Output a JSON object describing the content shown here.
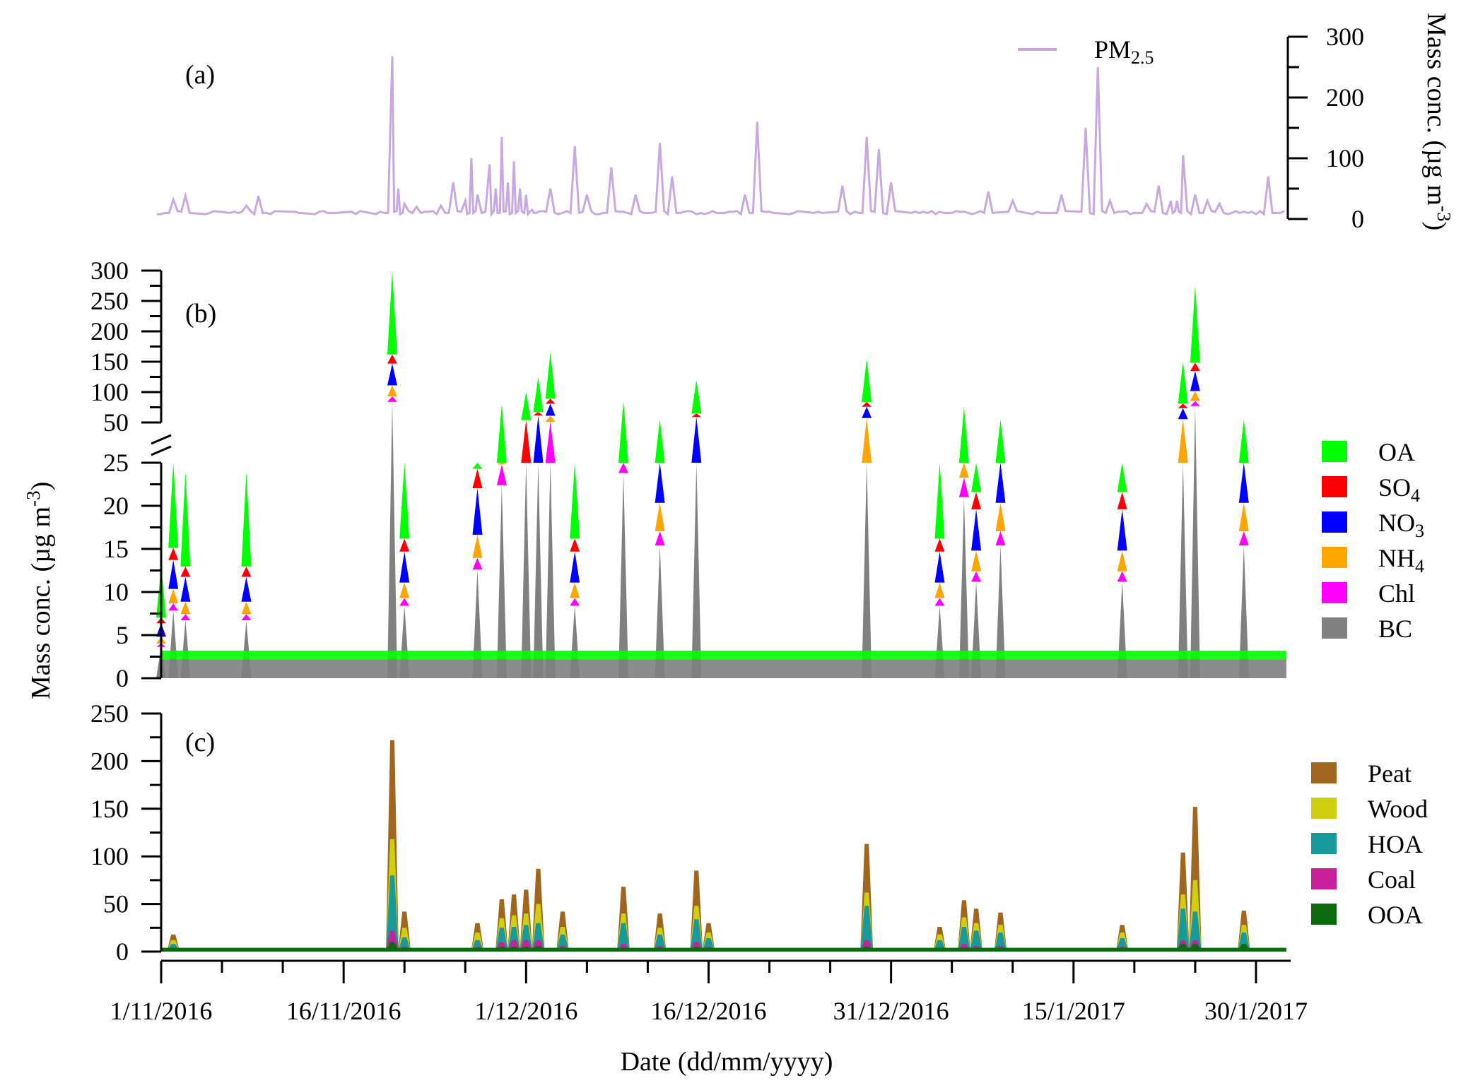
{
  "chart_data": [
    {
      "panel": "(a)",
      "type": "line",
      "ylabel": "Mass conc. (µg m",
      "ylabel_sup": "-3",
      "ylabel_close": ")",
      "y_axis_side": "right",
      "ylim": [
        0,
        300
      ],
      "yticks": [
        "0",
        "100",
        "200",
        "300"
      ],
      "legend": {
        "position": "top-right",
        "label": "PM",
        "label_sub": "2.5"
      },
      "colors": {
        "PM2.5": "#c8a8e0"
      },
      "series": [
        {
          "name": "PM2.5",
          "x": [
            "2016-11-01",
            "2016-11-02",
            "2016-11-03",
            "2016-11-05",
            "2016-11-07",
            "2016-11-08",
            "2016-11-09",
            "2016-11-10",
            "2016-11-12",
            "2016-11-14",
            "2016-11-15",
            "2016-11-17",
            "2016-11-19",
            "2016-11-20",
            "2016-11-20T12",
            "2016-11-21",
            "2016-11-22",
            "2016-11-23",
            "2016-11-24",
            "2016-11-25",
            "2016-11-26",
            "2016-11-26T12",
            "2016-11-27",
            "2016-11-28",
            "2016-11-28T12",
            "2016-11-29",
            "2016-11-29T12",
            "2016-11-30",
            "2016-11-30T12",
            "2016-12-01",
            "2016-12-01T12",
            "2016-12-02",
            "2016-12-03",
            "2016-12-04",
            "2016-12-05",
            "2016-12-06",
            "2016-12-07",
            "2016-12-08",
            "2016-12-09",
            "2016-12-10",
            "2016-12-11",
            "2016-12-12",
            "2016-12-13",
            "2016-12-14",
            "2016-12-15",
            "2016-12-16",
            "2016-12-17",
            "2016-12-18",
            "2016-12-19",
            "2016-12-20",
            "2016-12-21",
            "2016-12-23",
            "2016-12-25",
            "2016-12-27",
            "2016-12-28",
            "2016-12-29",
            "2016-12-30",
            "2016-12-31",
            "2017-01-02",
            "2017-01-03",
            "2017-01-04",
            "2017-01-05",
            "2017-01-06",
            "2017-01-07",
            "2017-01-08",
            "2017-01-10",
            "2017-01-12",
            "2017-01-14",
            "2017-01-16",
            "2017-01-17",
            "2017-01-18",
            "2017-01-19",
            "2017-01-20",
            "2017-01-21",
            "2017-01-22",
            "2017-01-23",
            "2017-01-23T12",
            "2017-01-24",
            "2017-01-25",
            "2017-01-26",
            "2017-01-27",
            "2017-01-28",
            "2017-01-29",
            "2017-01-30",
            "2017-01-31",
            "2017-02-01"
          ],
          "values": [
            8,
            32,
            38,
            10,
            12,
            22,
            38,
            8,
            12,
            12,
            10,
            8,
            12,
            268,
            50,
            25,
            20,
            12,
            22,
            60,
            30,
            100,
            40,
            90,
            50,
            135,
            60,
            95,
            50,
            40,
            15,
            12,
            50,
            10,
            120,
            40,
            8,
            85,
            12,
            40,
            10,
            125,
            70,
            12,
            8,
            10,
            10,
            12,
            40,
            160,
            12,
            10,
            12,
            55,
            12,
            135,
            115,
            60,
            12,
            10,
            12,
            10,
            12,
            10,
            45,
            30,
            12,
            40,
            150,
            250,
            30,
            12,
            10,
            25,
            55,
            30,
            30,
            105,
            40,
            30,
            25,
            10,
            12,
            8,
            70,
            10
          ]
        }
      ]
    },
    {
      "panel": "(b)",
      "type": "area",
      "stacked": true,
      "ylabel": "Mass conc. (µg m",
      "ylabel_sup": "-3",
      "ylabel_close": ")",
      "y_axis_break": [
        25,
        50
      ],
      "ylim_lower": [
        0,
        25
      ],
      "ylim_upper": [
        50,
        300
      ],
      "yticks_lower": [
        "0",
        "5",
        "10",
        "15",
        "20",
        "25"
      ],
      "yticks_upper": [
        "50",
        "100",
        "150",
        "200",
        "250",
        "300"
      ],
      "legend": {
        "position": "right",
        "entries": [
          {
            "label": "OA",
            "sub": ""
          },
          {
            "label": "SO",
            "sub": "4"
          },
          {
            "label": "NO",
            "sub": "3"
          },
          {
            "label": "NH",
            "sub": "4"
          },
          {
            "label": "Chl",
            "sub": ""
          },
          {
            "label": "BC",
            "sub": ""
          }
        ]
      },
      "colors": {
        "OA": "#00ff00",
        "SO4": "#ff0000",
        "NO3": "#0000ff",
        "NH4": "#ffa500",
        "Chl": "#ff00ff",
        "BC": "#808080"
      },
      "events_total": [
        {
          "x": "2016-11-01",
          "total": 13
        },
        {
          "x": "2016-11-02",
          "total": 28
        },
        {
          "x": "2016-11-03",
          "total": 24
        },
        {
          "x": "2016-11-08",
          "total": 24
        },
        {
          "x": "2016-11-20",
          "total": 300
        },
        {
          "x": "2016-11-21",
          "total": 30
        },
        {
          "x": "2016-11-27",
          "total": 45
        },
        {
          "x": "2016-11-29",
          "total": 80
        },
        {
          "x": "2016-12-01",
          "total": 100
        },
        {
          "x": "2016-12-02",
          "total": 125
        },
        {
          "x": "2016-12-03",
          "total": 165
        },
        {
          "x": "2016-12-05",
          "total": 30
        },
        {
          "x": "2016-12-09",
          "total": 85
        },
        {
          "x": "2016-12-12",
          "total": 55
        },
        {
          "x": "2016-12-15",
          "total": 120
        },
        {
          "x": "2016-12-29",
          "total": 155
        },
        {
          "x": "2017-01-04",
          "total": 30
        },
        {
          "x": "2017-01-06",
          "total": 75
        },
        {
          "x": "2017-01-07",
          "total": 40
        },
        {
          "x": "2017-01-09",
          "total": 55
        },
        {
          "x": "2017-01-19",
          "total": 40
        },
        {
          "x": "2017-01-24",
          "total": 150
        },
        {
          "x": "2017-01-25",
          "total": 275
        },
        {
          "x": "2017-01-29",
          "total": 55
        }
      ]
    },
    {
      "panel": "(c)",
      "type": "area",
      "stacked": true,
      "ylim": [
        0,
        250
      ],
      "yticks": [
        "0",
        "50",
        "100",
        "150",
        "200",
        "250"
      ],
      "legend": {
        "position": "right",
        "entries": [
          "Peat",
          "Wood",
          "HOA",
          "Coal",
          "OOA"
        ]
      },
      "colors": {
        "Peat": "#a0661e",
        "Wood": "#cfcf10",
        "HOA": "#189a9a",
        "Coal": "#c8209c",
        "OOA": "#0e6a10"
      },
      "xlabel": "Date (dd/mm/yyyy)",
      "xticks": [
        "1/11/2016",
        "16/11/2016",
        "1/12/2016",
        "16/12/2016",
        "31/12/2016",
        "15/1/2017",
        "30/1/2017"
      ],
      "peaks": [
        {
          "x": "2016-11-02",
          "Peat": 18,
          "Wood": 12,
          "HOA": 8,
          "Coal": 4,
          "OOA": 3
        },
        {
          "x": "2016-11-20",
          "Peat": 222,
          "Wood": 118,
          "HOA": 80,
          "Coal": 22,
          "OOA": 10
        },
        {
          "x": "2016-11-21",
          "Peat": 42,
          "Wood": 25,
          "HOA": 15,
          "Coal": 5,
          "OOA": 4
        },
        {
          "x": "2016-11-27",
          "Peat": 30,
          "Wood": 20,
          "HOA": 12,
          "Coal": 5,
          "OOA": 4
        },
        {
          "x": "2016-11-29",
          "Peat": 55,
          "Wood": 35,
          "HOA": 25,
          "Coal": 10,
          "OOA": 5
        },
        {
          "x": "2016-11-30",
          "Peat": 60,
          "Wood": 38,
          "HOA": 26,
          "Coal": 12,
          "OOA": 5
        },
        {
          "x": "2016-12-01",
          "Peat": 65,
          "Wood": 40,
          "HOA": 28,
          "Coal": 12,
          "OOA": 5
        },
        {
          "x": "2016-12-02",
          "Peat": 87,
          "Wood": 50,
          "HOA": 30,
          "Coal": 12,
          "OOA": 6
        },
        {
          "x": "2016-12-04",
          "Peat": 42,
          "Wood": 26,
          "HOA": 18,
          "Coal": 6,
          "OOA": 4
        },
        {
          "x": "2016-12-09",
          "Peat": 68,
          "Wood": 40,
          "HOA": 30,
          "Coal": 8,
          "OOA": 4
        },
        {
          "x": "2016-12-12",
          "Peat": 40,
          "Wood": 25,
          "HOA": 18,
          "Coal": 6,
          "OOA": 4
        },
        {
          "x": "2016-12-15",
          "Peat": 85,
          "Wood": 48,
          "HOA": 34,
          "Coal": 10,
          "OOA": 5
        },
        {
          "x": "2016-12-16",
          "Peat": 30,
          "Wood": 20,
          "HOA": 14,
          "Coal": 5,
          "OOA": 4
        },
        {
          "x": "2016-12-29",
          "Peat": 113,
          "Wood": 62,
          "HOA": 48,
          "Coal": 12,
          "OOA": 5
        },
        {
          "x": "2017-01-04",
          "Peat": 26,
          "Wood": 18,
          "HOA": 12,
          "Coal": 4,
          "OOA": 3
        },
        {
          "x": "2017-01-06",
          "Peat": 54,
          "Wood": 36,
          "HOA": 26,
          "Coal": 8,
          "OOA": 4
        },
        {
          "x": "2017-01-07",
          "Peat": 45,
          "Wood": 30,
          "HOA": 22,
          "Coal": 6,
          "OOA": 4
        },
        {
          "x": "2017-01-09",
          "Peat": 41,
          "Wood": 28,
          "HOA": 20,
          "Coal": 6,
          "OOA": 4
        },
        {
          "x": "2017-01-19",
          "Peat": 28,
          "Wood": 20,
          "HOA": 14,
          "Coal": 5,
          "OOA": 4
        },
        {
          "x": "2017-01-24",
          "Peat": 104,
          "Wood": 60,
          "HOA": 45,
          "Coal": 12,
          "OOA": 8
        },
        {
          "x": "2017-01-25",
          "Peat": 152,
          "Wood": 75,
          "HOA": 42,
          "Coal": 12,
          "OOA": 8
        },
        {
          "x": "2017-01-29",
          "Peat": 43,
          "Wood": 28,
          "HOA": 20,
          "Coal": 6,
          "OOA": 8
        }
      ]
    }
  ]
}
